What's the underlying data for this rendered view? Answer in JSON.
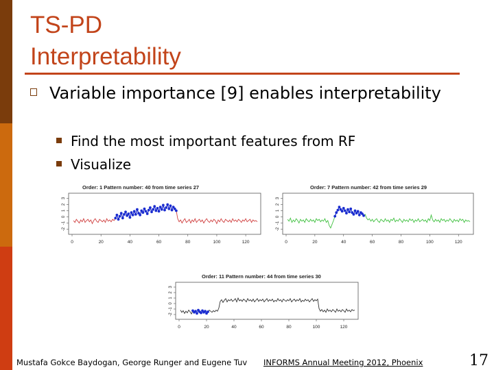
{
  "slide": {
    "title_line1": "TS-PD",
    "title_line2": "Interpretability",
    "bullet": "Variable importance [9] enables interpretability",
    "sub_bullets": [
      "Find the most important features from RF",
      "Visualize"
    ],
    "colors": {
      "accent": "#c2441a",
      "bar_dark": "#7a3c0c",
      "bar_mid": "#cc6a0e",
      "bar_light": "#cf3d12"
    }
  },
  "footer": {
    "author": "Mustafa Gokce Baydogan, George Runger and Eugene Tuv",
    "conference": "INFORMS Annual Meeting 2012, Phoenix",
    "page": "17"
  },
  "chart_data": [
    {
      "type": "line",
      "title": "Order: 1   Pattern number: 40 from time series 27",
      "x_ticks": [
        0,
        20,
        40,
        60,
        80,
        100,
        120
      ],
      "y_ticks": [
        -2,
        -1,
        0,
        1,
        2,
        3
      ],
      "xlim": [
        0,
        128
      ],
      "ylim": [
        -2.5,
        3.5
      ],
      "line_color": "#d04040",
      "highlight_color": "#1a2ccf",
      "highlight_range": [
        30,
        72
      ],
      "values": [
        -0.6,
        -0.9,
        -0.4,
        -0.7,
        -1.0,
        -0.5,
        -0.8,
        -0.3,
        -0.9,
        -0.6,
        -0.4,
        -0.8,
        -0.5,
        -1.1,
        -0.6,
        -0.3,
        -0.7,
        -0.9,
        -0.4,
        -0.6,
        -0.8,
        -0.5,
        -0.9,
        -0.3,
        -0.7,
        -0.5,
        -0.8,
        -0.4,
        -0.6,
        -0.2,
        0.3,
        -0.4,
        0.1,
        0.6,
        -0.2,
        0.4,
        0.8,
        0.2,
        0.5,
        -0.1,
        0.7,
        0.3,
        0.9,
        0.4,
        1.2,
        0.6,
        0.3,
        1.0,
        0.7,
        1.3,
        0.9,
        0.5,
        1.1,
        1.5,
        0.8,
        1.2,
        1.7,
        1.0,
        1.4,
        0.9,
        1.6,
        1.2,
        1.9,
        1.1,
        1.5,
        2.0,
        1.3,
        1.8,
        1.1,
        1.6,
        1.3,
        1.0,
        -0.3,
        -0.8,
        -0.5,
        -1.0,
        -0.6,
        -0.3,
        -0.9,
        -0.7,
        -0.4,
        -1.0,
        -0.5,
        -0.8,
        -0.3,
        -0.9,
        -0.6,
        -0.4,
        -0.8,
        -0.5,
        -1.0,
        -0.6,
        -0.3,
        -0.7,
        -0.9,
        -0.5,
        -0.8,
        -0.4,
        -0.6,
        -1.1,
        -0.5,
        -0.8,
        -0.3,
        -0.7,
        -0.9,
        -0.4,
        -0.6,
        -0.8,
        -0.5,
        -0.9,
        -0.3,
        -0.7,
        -0.5,
        -0.8,
        -0.4,
        -0.6,
        -0.9,
        -0.5,
        -0.7,
        -0.3,
        -0.8,
        -0.6,
        -0.4,
        -0.9,
        -0.5,
        -0.7,
        -0.6,
        -0.8
      ]
    },
    {
      "type": "line",
      "title": "Order: 7   Pattern number: 42 from time series 29",
      "x_ticks": [
        0,
        20,
        40,
        60,
        80,
        100,
        120
      ],
      "y_ticks": [
        -2,
        -1,
        0,
        1,
        2,
        3
      ],
      "xlim": [
        0,
        128
      ],
      "ylim": [
        -2.5,
        3.5
      ],
      "line_color": "#40c040",
      "highlight_color": "#1a2ccf",
      "highlight_range": [
        34,
        54
      ],
      "values": [
        -0.4,
        -0.7,
        -0.2,
        -0.9,
        -0.5,
        -0.8,
        -0.3,
        -0.6,
        -1.0,
        -0.4,
        -0.7,
        -0.5,
        -0.9,
        -0.3,
        -0.6,
        -0.8,
        -0.4,
        -0.7,
        -0.5,
        -0.9,
        -0.3,
        -0.6,
        -0.4,
        -0.8,
        -0.5,
        -0.7,
        -0.3,
        -0.9,
        -0.6,
        -1.4,
        -1.8,
        -1.2,
        -0.6,
        0.1,
        0.7,
        1.1,
        1.6,
        1.2,
        0.9,
        1.4,
        1.0,
        0.6,
        1.2,
        0.8,
        1.3,
        0.7,
        0.4,
        1.0,
        0.6,
        0.9,
        0.3,
        0.7,
        0.5,
        0.2,
        0.4,
        -0.2,
        -0.5,
        -0.3,
        -0.7,
        -0.4,
        -0.8,
        -0.5,
        -0.3,
        -0.7,
        -0.9,
        -0.4,
        -0.6,
        -0.8,
        -0.3,
        -0.7,
        -0.5,
        -0.9,
        -0.4,
        -0.6,
        -0.2,
        -0.8,
        -0.5,
        -0.7,
        -0.3,
        -0.6,
        -0.9,
        -0.4,
        -0.7,
        -0.5,
        -0.8,
        -0.3,
        -0.6,
        -0.4,
        -0.9,
        -0.5,
        -0.7,
        -0.3,
        -0.8,
        -0.6,
        -0.4,
        -0.7,
        -0.5,
        -0.9,
        -0.3,
        -0.6,
        0.3,
        -0.5,
        -0.8,
        -0.4,
        -0.7,
        -0.5,
        -0.9,
        -0.3,
        -0.6,
        -0.4,
        -0.8,
        -0.5,
        -0.7,
        -0.3,
        -0.6,
        -0.9,
        -0.4,
        -0.7,
        -0.5,
        -0.8,
        -0.3,
        -0.6,
        -0.4,
        -0.9,
        -0.5,
        -0.7,
        -0.6,
        -0.8
      ]
    },
    {
      "type": "line",
      "title": "Order: 11   Pattern number: 44 from time series 30",
      "x_ticks": [
        0,
        20,
        40,
        60,
        80,
        100,
        120
      ],
      "y_ticks": [
        -2,
        -1,
        0,
        1,
        2,
        3
      ],
      "xlim": [
        0,
        128
      ],
      "ylim": [
        -2.5,
        3.5
      ],
      "line_color": "#333333",
      "highlight_color": "#1a2ccf",
      "highlight_range": [
        10,
        21
      ],
      "values": [
        -1.2,
        -1.6,
        -1.3,
        -1.8,
        -1.4,
        -1.7,
        -1.2,
        -1.5,
        -1.9,
        -1.3,
        -1.6,
        -1.4,
        -1.8,
        -1.2,
        -1.5,
        -1.7,
        -1.3,
        -1.6,
        -1.4,
        -1.8,
        -1.5,
        -1.2,
        -1.4,
        -1.6,
        -1.3,
        -1.5,
        -1.2,
        -1.4,
        -0.8,
        0.4,
        0.7,
        0.2,
        0.6,
        0.9,
        0.3,
        0.7,
        0.5,
        0.8,
        0.4,
        0.6,
        0.9,
        0.3,
        1.0,
        0.5,
        0.7,
        0.4,
        0.8,
        0.6,
        0.3,
        0.9,
        0.5,
        0.7,
        0.4,
        0.8,
        0.3,
        0.6,
        0.9,
        0.4,
        0.7,
        0.5,
        0.8,
        0.3,
        0.6,
        0.9,
        0.4,
        0.7,
        0.5,
        0.8,
        0.3,
        0.6,
        0.4,
        0.9,
        0.5,
        0.7,
        0.3,
        0.8,
        0.6,
        0.4,
        0.7,
        0.5,
        0.9,
        0.3,
        0.6,
        0.8,
        0.4,
        0.7,
        0.5,
        0.9,
        0.3,
        0.6,
        0.4,
        0.8,
        0.5,
        0.7,
        0.3,
        0.6,
        0.9,
        0.4,
        0.7,
        0.5,
        0.8,
        -0.9,
        -1.4,
        -1.1,
        -1.5,
        -1.2,
        -1.6,
        -1.0,
        -1.4,
        -1.2,
        -1.5,
        -1.1,
        -1.3,
        -1.6,
        -1.0,
        -1.4,
        -1.2,
        -1.5,
        -1.1,
        -1.3,
        -1.6,
        -1.0,
        -1.4,
        -1.2,
        -1.5,
        -1.1,
        -1.3,
        -1.2
      ]
    }
  ]
}
